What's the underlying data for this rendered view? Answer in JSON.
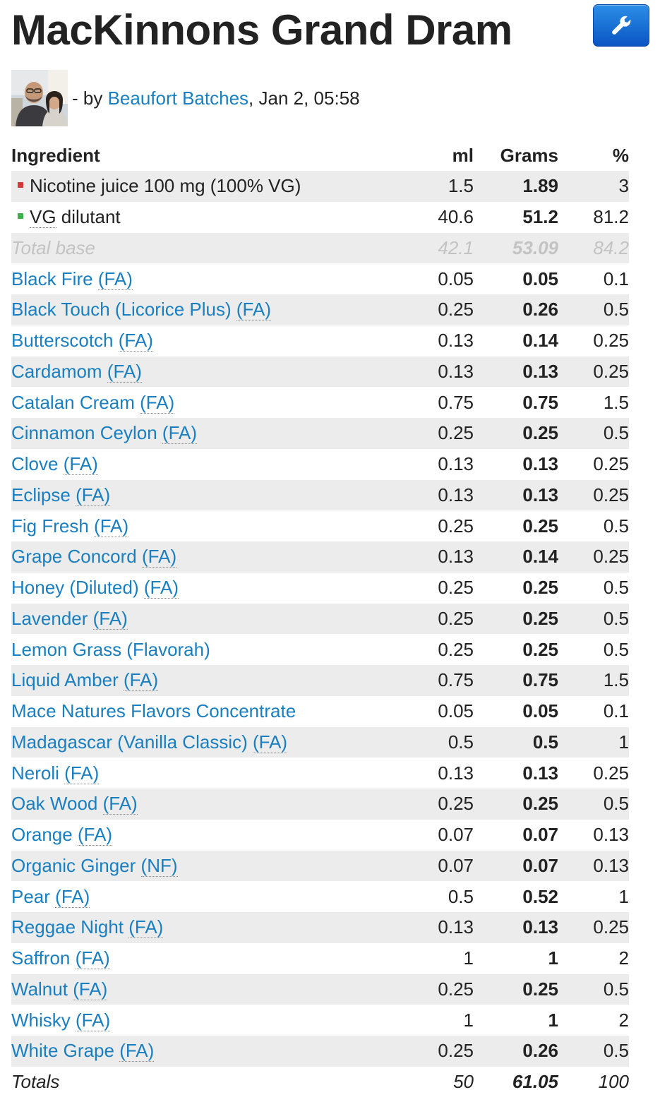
{
  "recipe": {
    "title": "MacKinnons Grand Dram",
    "byline_prefix": "- by",
    "author": "Beaufort Batches",
    "date_text": ", Jan 2, 05:58"
  },
  "colors": {
    "nicotine": "#d23b3b",
    "dilutant": "#3cb04a",
    "link": "#1a7fc1"
  },
  "table": {
    "headers": {
      "ingredient": "Ingredient",
      "ml": "ml",
      "grams": "Grams",
      "percent": "%"
    },
    "base": [
      {
        "name": "Nicotine juice 100 mg (100% VG)",
        "ml": "1.5",
        "grams": "1.89",
        "percent": "3",
        "marker": "red-square"
      },
      {
        "name": "VG dilutant",
        "name_first": "VG",
        "name_rest": " dilutant",
        "ml": "40.6",
        "grams": "51.2",
        "percent": "81.2",
        "marker": "green-square"
      }
    ],
    "total_base": {
      "label": "Total base",
      "ml": "42.1",
      "grams": "53.09",
      "percent": "84.2"
    },
    "flavors": [
      {
        "name": "Black Fire",
        "vendor": "(FA)",
        "ml": "0.05",
        "grams": "0.05",
        "percent": "0.1"
      },
      {
        "name": "Black Touch (Licorice Plus)",
        "vendor": "(FA)",
        "ml": "0.25",
        "grams": "0.26",
        "percent": "0.5"
      },
      {
        "name": "Butterscotch",
        "vendor": "(FA)",
        "ml": "0.13",
        "grams": "0.14",
        "percent": "0.25"
      },
      {
        "name": "Cardamom",
        "vendor": "(FA)",
        "ml": "0.13",
        "grams": "0.13",
        "percent": "0.25"
      },
      {
        "name": "Catalan Cream",
        "vendor": "(FA)",
        "ml": "0.75",
        "grams": "0.75",
        "percent": "1.5"
      },
      {
        "name": "Cinnamon Ceylon",
        "vendor": "(FA)",
        "ml": "0.25",
        "grams": "0.25",
        "percent": "0.5"
      },
      {
        "name": "Clove",
        "vendor": "(FA)",
        "ml": "0.13",
        "grams": "0.13",
        "percent": "0.25"
      },
      {
        "name": "Eclipse",
        "vendor": "(FA)",
        "ml": "0.13",
        "grams": "0.13",
        "percent": "0.25"
      },
      {
        "name": "Fig Fresh",
        "vendor": "(FA)",
        "ml": "0.25",
        "grams": "0.25",
        "percent": "0.5"
      },
      {
        "name": "Grape Concord",
        "vendor": "(FA)",
        "ml": "0.13",
        "grams": "0.14",
        "percent": "0.25"
      },
      {
        "name": "Honey (Diluted)",
        "vendor": "(FA)",
        "ml": "0.25",
        "grams": "0.25",
        "percent": "0.5"
      },
      {
        "name": "Lavender",
        "vendor": "(FA)",
        "ml": "0.25",
        "grams": "0.25",
        "percent": "0.5"
      },
      {
        "name": "Lemon Grass (Flavorah)",
        "vendor": "",
        "ml": "0.25",
        "grams": "0.25",
        "percent": "0.5"
      },
      {
        "name": "Liquid Amber",
        "vendor": "(FA)",
        "ml": "0.75",
        "grams": "0.75",
        "percent": "1.5"
      },
      {
        "name": "Mace Natures Flavors Concentrate",
        "vendor": "",
        "ml": "0.05",
        "grams": "0.05",
        "percent": "0.1"
      },
      {
        "name": "Madagascar (Vanilla Classic)",
        "vendor": "(FA)",
        "ml": "0.5",
        "grams": "0.5",
        "percent": "1"
      },
      {
        "name": "Neroli",
        "vendor": "(FA)",
        "ml": "0.13",
        "grams": "0.13",
        "percent": "0.25"
      },
      {
        "name": "Oak Wood",
        "vendor": "(FA)",
        "ml": "0.25",
        "grams": "0.25",
        "percent": "0.5"
      },
      {
        "name": "Orange",
        "vendor": "(FA)",
        "ml": "0.07",
        "grams": "0.07",
        "percent": "0.13"
      },
      {
        "name": "Organic Ginger",
        "vendor": "(NF)",
        "ml": "0.07",
        "grams": "0.07",
        "percent": "0.13"
      },
      {
        "name": "Pear",
        "vendor": "(FA)",
        "ml": "0.5",
        "grams": "0.52",
        "percent": "1"
      },
      {
        "name": "Reggae Night",
        "vendor": "(FA)",
        "ml": "0.13",
        "grams": "0.13",
        "percent": "0.25"
      },
      {
        "name": "Saffron",
        "vendor": "(FA)",
        "ml": "1",
        "grams": "1",
        "percent": "2"
      },
      {
        "name": "Walnut",
        "vendor": "(FA)",
        "ml": "0.25",
        "grams": "0.25",
        "percent": "0.5"
      },
      {
        "name": "Whisky",
        "vendor": "(FA)",
        "ml": "1",
        "grams": "1",
        "percent": "2"
      },
      {
        "name": "White Grape",
        "vendor": "(FA)",
        "ml": "0.25",
        "grams": "0.26",
        "percent": "0.5"
      }
    ],
    "totals": {
      "label": "Totals",
      "ml": "50",
      "grams": "61.05",
      "percent": "100"
    }
  }
}
